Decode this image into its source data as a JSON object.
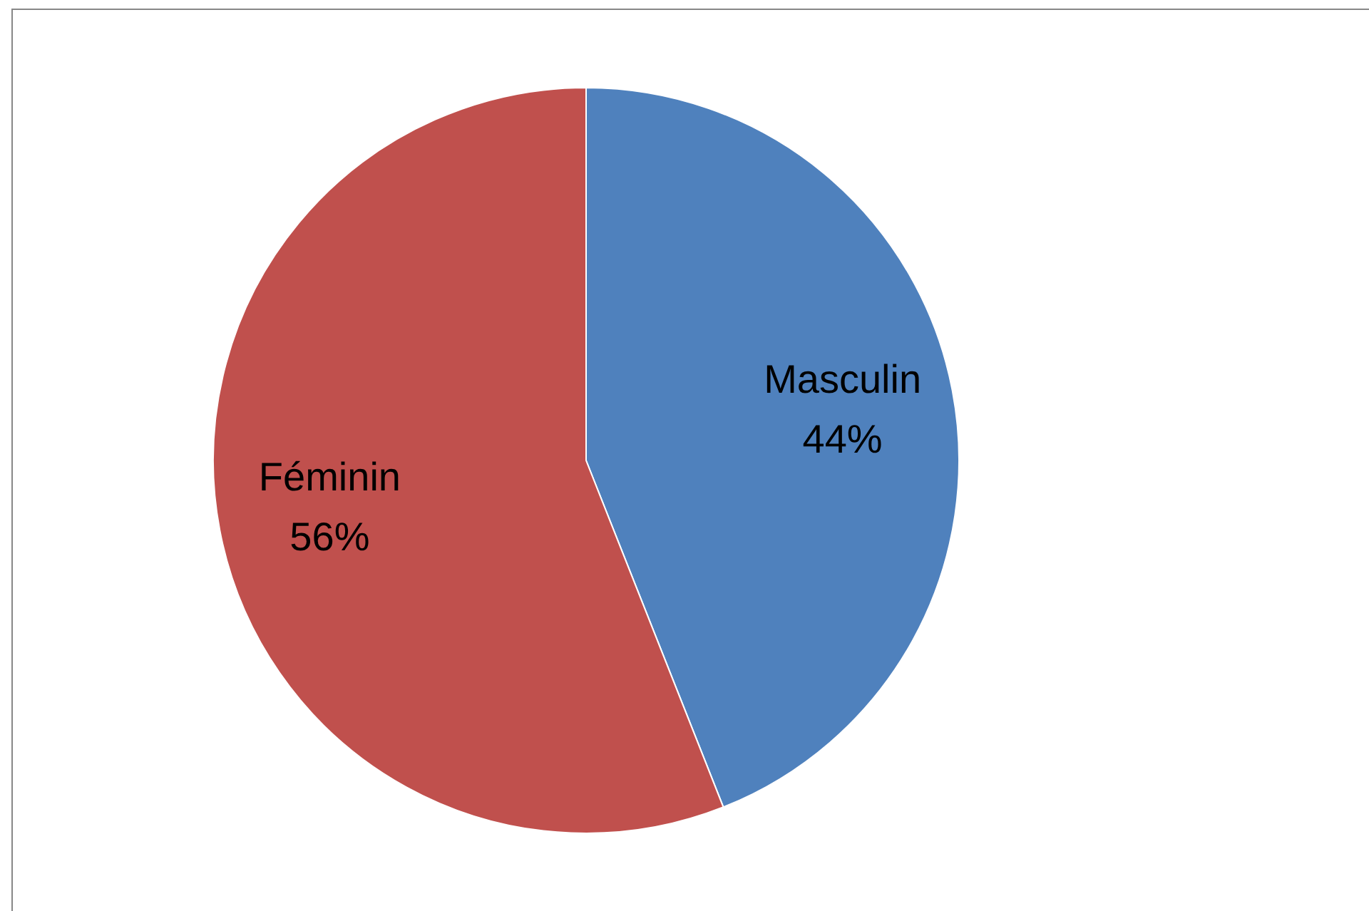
{
  "chart_data": {
    "type": "pie",
    "categories": [
      "Masculin",
      "Féminin"
    ],
    "values": [
      44,
      56
    ],
    "value_labels": [
      "44%",
      "56%"
    ],
    "colors": [
      "#4f81bd",
      "#c0504d"
    ],
    "legend": false
  }
}
